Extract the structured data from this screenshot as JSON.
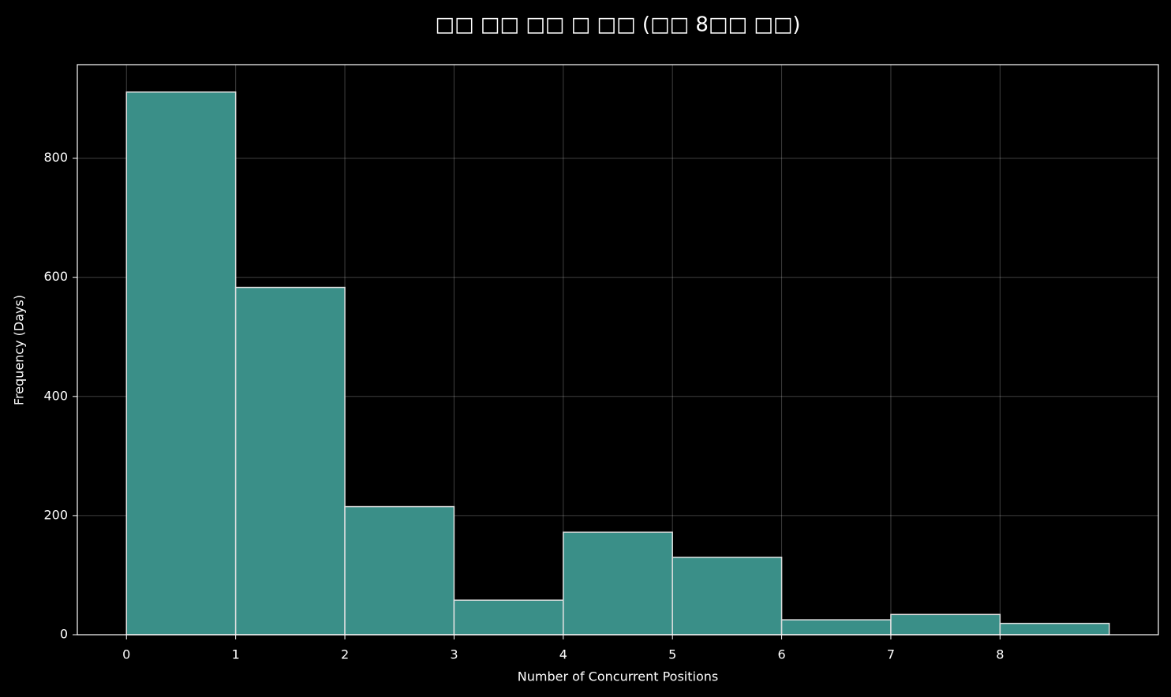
{
  "chart_data": {
    "type": "histogram",
    "title": "□□ □□ □□ □ □□ (□□ 8□□ □□)",
    "xlabel": "Number of Concurrent Positions",
    "ylabel": "Frequency (Days)",
    "bins": [
      0,
      1,
      2,
      3,
      4,
      5,
      6,
      7,
      8,
      9
    ],
    "values": [
      911,
      583,
      215,
      58,
      172,
      130,
      25,
      34,
      19
    ],
    "color": "#3a8f88",
    "edgecolor": "#e0e0e0",
    "xlim": [
      -0.45,
      9.45
    ],
    "ylim": [
      0,
      957
    ],
    "xticks": [
      0,
      1,
      2,
      3,
      4,
      5,
      6,
      7,
      8
    ],
    "yticks": [
      0,
      200,
      400,
      600,
      800
    ],
    "grid": true
  }
}
